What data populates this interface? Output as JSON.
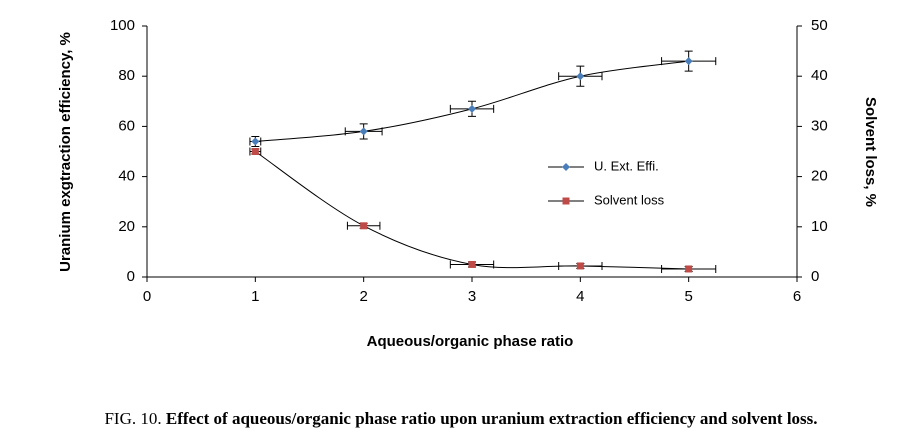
{
  "chart_data": {
    "type": "line",
    "x_label": "Aqueous/organic phase ratio",
    "y_label": "Uranium exgtraction efficiency, %",
    "y2_label": "Solvent loss, %",
    "xlim": [
      0,
      6
    ],
    "xticks": [
      0,
      1,
      2,
      3,
      4,
      5,
      6
    ],
    "ylim": [
      0,
      100
    ],
    "yticks": [
      0,
      20,
      40,
      60,
      80,
      100
    ],
    "y2lim": [
      0,
      50
    ],
    "y2ticks": [
      0,
      10,
      20,
      30,
      40,
      50
    ],
    "x": [
      1,
      2,
      3,
      4,
      5
    ],
    "series": [
      {
        "name": "U. Ext. Effi.",
        "color": "#4a7ebb",
        "marker": "diamond",
        "values": [
          54,
          58,
          67,
          80,
          86
        ],
        "yerr": [
          2,
          3,
          3,
          4,
          4
        ],
        "xerr": [
          0.05,
          0.17,
          0.2,
          0.2,
          0.25
        ]
      },
      {
        "name": "Solvent loss",
        "color": "#be4b48",
        "marker": "square",
        "axis": "y2",
        "values": [
          25,
          10.2,
          2.5,
          2.2,
          1.6
        ],
        "yerr": [
          0.5,
          0.5,
          0.5,
          0.5,
          0.5
        ],
        "xerr": [
          0.05,
          0.15,
          0.2,
          0.2,
          0.25
        ]
      }
    ],
    "legend_position": "center-right",
    "caption_label": "FIG. 10.",
    "caption_text": "Effect of aqueous/organic phase ratio upon uranium extraction efficiency and solvent loss."
  }
}
